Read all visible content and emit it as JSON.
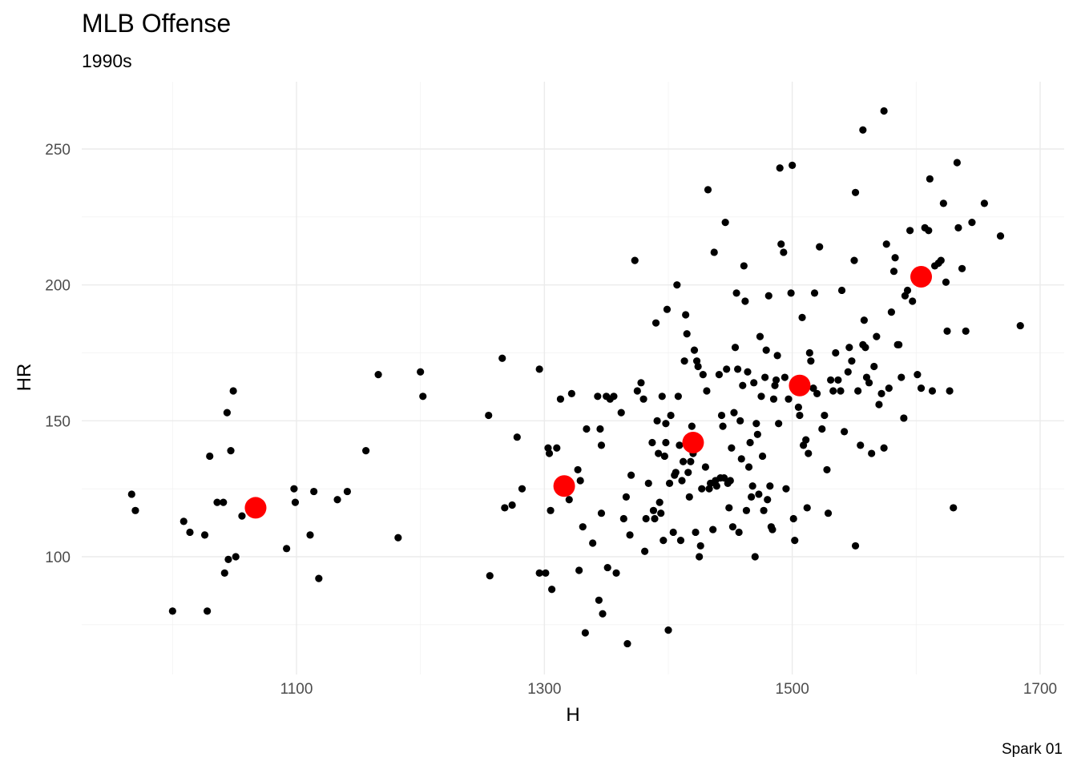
{
  "chart_data": {
    "type": "scatter",
    "title": "MLB Offense",
    "subtitle": "1990s",
    "xlabel": "H",
    "ylabel": "HR",
    "caption": "Spark 01",
    "xlim": [
      930,
      1720
    ],
    "ylim": [
      60,
      272
    ],
    "x_ticks": [
      1100,
      1300,
      1500,
      1700
    ],
    "y_ticks": [
      100,
      150,
      200,
      250
    ],
    "grid": true,
    "legend": "none",
    "colors": {
      "points": "#000000",
      "centroids": "#ff0000"
    },
    "series": [
      {
        "values": [
          [
            967,
            123
          ],
          [
            970,
            117
          ],
          [
            1000,
            80
          ],
          [
            1009,
            113
          ],
          [
            1014,
            109
          ],
          [
            1026,
            108
          ],
          [
            1028,
            80
          ],
          [
            1030,
            137
          ],
          [
            1036,
            120
          ],
          [
            1041,
            120
          ],
          [
            1042,
            94
          ],
          [
            1044,
            153
          ],
          [
            1045,
            99
          ],
          [
            1047,
            139
          ],
          [
            1049,
            161
          ],
          [
            1051,
            100
          ],
          [
            1056,
            115
          ],
          [
            1092,
            103
          ],
          [
            1098,
            125
          ],
          [
            1099,
            120
          ],
          [
            1111,
            108
          ],
          [
            1114,
            124
          ],
          [
            1118,
            92
          ],
          [
            1133,
            121
          ],
          [
            1141,
            124
          ],
          [
            1156,
            139
          ],
          [
            1166,
            167
          ],
          [
            1182,
            107
          ],
          [
            1200,
            168
          ],
          [
            1202,
            159
          ],
          [
            1255,
            152
          ],
          [
            1256,
            93
          ],
          [
            1266,
            173
          ],
          [
            1268,
            118
          ],
          [
            1274,
            119
          ],
          [
            1278,
            144
          ],
          [
            1282,
            125
          ],
          [
            1296,
            169
          ],
          [
            1296,
            94
          ],
          [
            1301,
            94
          ],
          [
            1303,
            140
          ],
          [
            1304,
            138
          ],
          [
            1305,
            117
          ],
          [
            1306,
            88
          ],
          [
            1310,
            140
          ],
          [
            1313,
            158
          ],
          [
            1320,
            121
          ],
          [
            1322,
            160
          ],
          [
            1327,
            132
          ],
          [
            1328,
            95
          ],
          [
            1329,
            128
          ],
          [
            1331,
            111
          ],
          [
            1333,
            72
          ],
          [
            1334,
            147
          ],
          [
            1339,
            105
          ],
          [
            1343,
            159
          ],
          [
            1344,
            84
          ],
          [
            1345,
            147
          ],
          [
            1346,
            141
          ],
          [
            1346,
            116
          ],
          [
            1347,
            79
          ],
          [
            1350,
            159
          ],
          [
            1351,
            96
          ],
          [
            1353,
            158
          ],
          [
            1356,
            159
          ],
          [
            1358,
            94
          ],
          [
            1362,
            153
          ],
          [
            1364,
            114
          ],
          [
            1366,
            122
          ],
          [
            1367,
            68
          ],
          [
            1369,
            108
          ],
          [
            1370,
            130
          ],
          [
            1373,
            209
          ],
          [
            1375,
            161
          ],
          [
            1378,
            164
          ],
          [
            1380,
            158
          ],
          [
            1381,
            102
          ],
          [
            1382,
            114
          ],
          [
            1384,
            127
          ],
          [
            1387,
            142
          ],
          [
            1388,
            117
          ],
          [
            1389,
            114
          ],
          [
            1390,
            186
          ],
          [
            1391,
            150
          ],
          [
            1392,
            138
          ],
          [
            1393,
            120
          ],
          [
            1394,
            116
          ],
          [
            1395,
            159
          ],
          [
            1396,
            106
          ],
          [
            1397,
            137
          ],
          [
            1398,
            149
          ],
          [
            1398,
            142
          ],
          [
            1399,
            191
          ],
          [
            1400,
            73
          ],
          [
            1401,
            127
          ],
          [
            1402,
            152
          ],
          [
            1404,
            109
          ],
          [
            1405,
            130
          ],
          [
            1406,
            131
          ],
          [
            1407,
            200
          ],
          [
            1408,
            159
          ],
          [
            1409,
            141
          ],
          [
            1410,
            106
          ],
          [
            1411,
            128
          ],
          [
            1412,
            135
          ],
          [
            1413,
            172
          ],
          [
            1414,
            189
          ],
          [
            1415,
            182
          ],
          [
            1416,
            131
          ],
          [
            1417,
            122
          ],
          [
            1418,
            135
          ],
          [
            1419,
            148
          ],
          [
            1420,
            138
          ],
          [
            1421,
            176
          ],
          [
            1422,
            109
          ],
          [
            1423,
            172
          ],
          [
            1424,
            170
          ],
          [
            1425,
            100
          ],
          [
            1426,
            104
          ],
          [
            1427,
            125
          ],
          [
            1428,
            167
          ],
          [
            1430,
            133
          ],
          [
            1431,
            161
          ],
          [
            1432,
            235
          ],
          [
            1433,
            125
          ],
          [
            1434,
            127
          ],
          [
            1436,
            110
          ],
          [
            1437,
            212
          ],
          [
            1438,
            128
          ],
          [
            1439,
            126
          ],
          [
            1441,
            167
          ],
          [
            1442,
            129
          ],
          [
            1443,
            152
          ],
          [
            1444,
            148
          ],
          [
            1445,
            129
          ],
          [
            1446,
            223
          ],
          [
            1447,
            169
          ],
          [
            1448,
            127
          ],
          [
            1449,
            118
          ],
          [
            1450,
            128
          ],
          [
            1451,
            140
          ],
          [
            1452,
            111
          ],
          [
            1453,
            153
          ],
          [
            1454,
            177
          ],
          [
            1455,
            197
          ],
          [
            1456,
            169
          ],
          [
            1457,
            109
          ],
          [
            1458,
            150
          ],
          [
            1459,
            136
          ],
          [
            1460,
            163
          ],
          [
            1461,
            207
          ],
          [
            1462,
            194
          ],
          [
            1463,
            117
          ],
          [
            1464,
            168
          ],
          [
            1465,
            133
          ],
          [
            1466,
            142
          ],
          [
            1467,
            122
          ],
          [
            1468,
            126
          ],
          [
            1469,
            164
          ],
          [
            1470,
            100
          ],
          [
            1471,
            149
          ],
          [
            1472,
            145
          ],
          [
            1473,
            123
          ],
          [
            1474,
            181
          ],
          [
            1475,
            159
          ],
          [
            1476,
            137
          ],
          [
            1477,
            117
          ],
          [
            1478,
            166
          ],
          [
            1479,
            176
          ],
          [
            1480,
            121
          ],
          [
            1481,
            196
          ],
          [
            1482,
            126
          ],
          [
            1483,
            111
          ],
          [
            1484,
            110
          ],
          [
            1485,
            158
          ],
          [
            1486,
            163
          ],
          [
            1487,
            165
          ],
          [
            1488,
            174
          ],
          [
            1489,
            149
          ],
          [
            1490,
            243
          ],
          [
            1491,
            215
          ],
          [
            1493,
            212
          ],
          [
            1494,
            166
          ],
          [
            1495,
            125
          ],
          [
            1497,
            158
          ],
          [
            1499,
            197
          ],
          [
            1500,
            244
          ],
          [
            1501,
            114
          ],
          [
            1502,
            106
          ],
          [
            1504,
            162
          ],
          [
            1505,
            155
          ],
          [
            1506,
            152
          ],
          [
            1508,
            188
          ],
          [
            1509,
            141
          ],
          [
            1511,
            143
          ],
          [
            1512,
            118
          ],
          [
            1513,
            138
          ],
          [
            1514,
            175
          ],
          [
            1515,
            172
          ],
          [
            1517,
            162
          ],
          [
            1518,
            197
          ],
          [
            1520,
            160
          ],
          [
            1522,
            214
          ],
          [
            1524,
            147
          ],
          [
            1526,
            152
          ],
          [
            1528,
            132
          ],
          [
            1529,
            116
          ],
          [
            1531,
            165
          ],
          [
            1533,
            161
          ],
          [
            1535,
            175
          ],
          [
            1537,
            165
          ],
          [
            1539,
            161
          ],
          [
            1540,
            198
          ],
          [
            1542,
            146
          ],
          [
            1545,
            168
          ],
          [
            1546,
            177
          ],
          [
            1548,
            172
          ],
          [
            1550,
            209
          ],
          [
            1551,
            104
          ],
          [
            1553,
            161
          ],
          [
            1555,
            141
          ],
          [
            1557,
            178
          ],
          [
            1558,
            187
          ],
          [
            1559,
            177
          ],
          [
            1560,
            166
          ],
          [
            1562,
            164
          ],
          [
            1564,
            138
          ],
          [
            1566,
            170
          ],
          [
            1568,
            181
          ],
          [
            1570,
            156
          ],
          [
            1572,
            160
          ],
          [
            1574,
            140
          ],
          [
            1576,
            215
          ],
          [
            1578,
            162
          ],
          [
            1580,
            190
          ],
          [
            1582,
            205
          ],
          [
            1583,
            210
          ],
          [
            1585,
            178
          ],
          [
            1586,
            178
          ],
          [
            1588,
            166
          ],
          [
            1590,
            151
          ],
          [
            1591,
            196
          ],
          [
            1593,
            198
          ],
          [
            1595,
            220
          ],
          [
            1597,
            194
          ],
          [
            1601,
            167
          ],
          [
            1604,
            162
          ],
          [
            1607,
            221
          ],
          [
            1610,
            220
          ],
          [
            1613,
            161
          ],
          [
            1615,
            207
          ],
          [
            1618,
            208
          ],
          [
            1620,
            209
          ],
          [
            1622,
            230
          ],
          [
            1624,
            201
          ],
          [
            1625,
            183
          ],
          [
            1627,
            161
          ],
          [
            1630,
            118
          ],
          [
            1633,
            245
          ],
          [
            1634,
            221
          ],
          [
            1637,
            206
          ],
          [
            1640,
            183
          ],
          [
            1645,
            223
          ],
          [
            1655,
            230
          ],
          [
            1668,
            218
          ],
          [
            1684,
            185
          ],
          [
            1557,
            257
          ],
          [
            1574,
            264
          ],
          [
            1551,
            234
          ],
          [
            1611,
            239
          ]
        ]
      },
      {
        "values": [
          [
            1067,
            118
          ],
          [
            1316,
            126
          ],
          [
            1420,
            142
          ],
          [
            1506,
            163
          ],
          [
            1604,
            203
          ]
        ]
      }
    ]
  }
}
